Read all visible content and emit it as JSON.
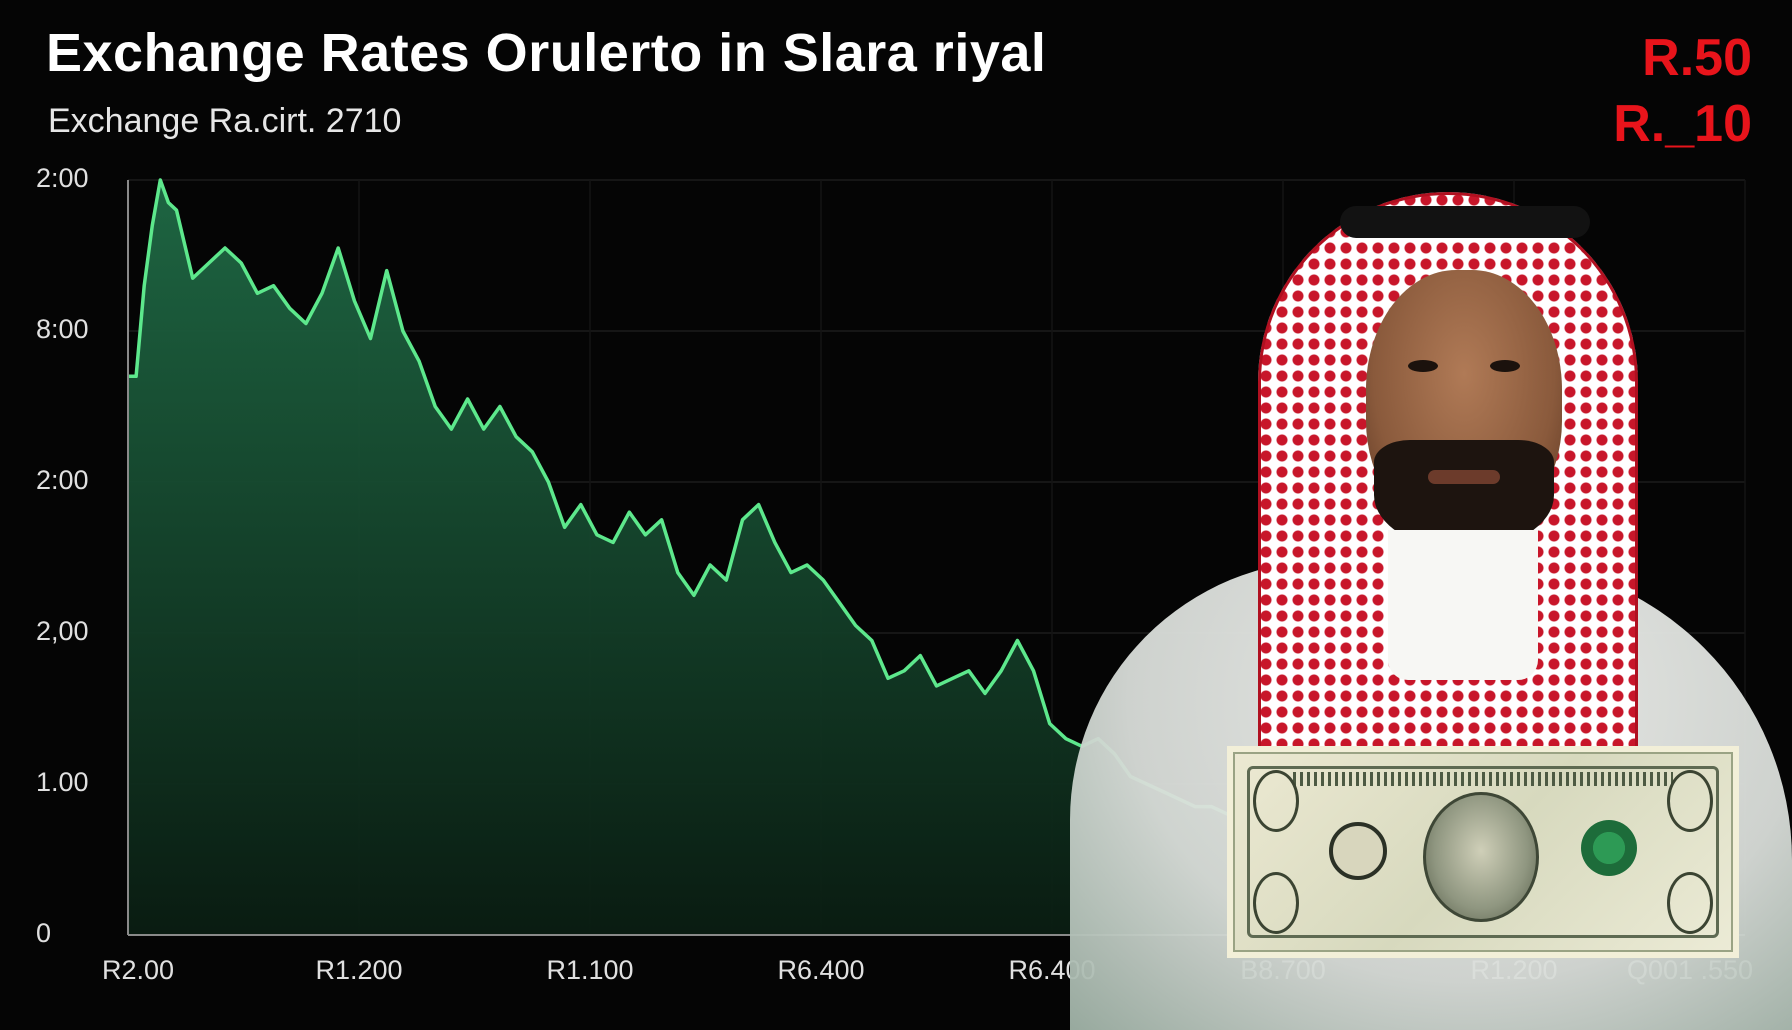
{
  "header": {
    "title": "Exchange Rates Orulerto in Slara riyal",
    "subtitle": "Exchange Ra.cirt. 2710",
    "badge_top": "R.50",
    "badge_bottom": "R._10"
  },
  "colors": {
    "background": "#050505",
    "line": "#5de88c",
    "area_top": "#1f6a45",
    "area_bottom": "#0a1d12",
    "badge": "#e8141b"
  },
  "photo": {
    "subject_icon": "man-in-red-white-ghutra-image",
    "banknote_icon": "us-one-dollar-banknote-image"
  },
  "chart_data": {
    "type": "area",
    "title": "Exchange Rates Orulerto in Slara riyal",
    "subtitle": "Exchange Ra.cirt. 2710",
    "y_tick_labels": [
      "0",
      "1.00",
      "2,00",
      "2:00",
      "8:00",
      "2:00"
    ],
    "x_tick_labels": [
      "R2.00",
      "R1.200",
      "R1.100",
      "R6.400",
      "R6.400",
      "B8.700",
      "R1.200",
      "Q001 .550"
    ],
    "ylim": [
      0,
      5
    ],
    "xlim": [
      0,
      100
    ],
    "grid": true,
    "series": [
      {
        "x": [
          0,
          0.5,
          1,
          1.5,
          2,
          2.5,
          3,
          4,
          5,
          6,
          7,
          8,
          9,
          10,
          11,
          12,
          13,
          14,
          15,
          16,
          17,
          18,
          19,
          20,
          21,
          22,
          23,
          24,
          25,
          26,
          27,
          28,
          29,
          30,
          31,
          32,
          33,
          34,
          35,
          36,
          37,
          38,
          39,
          40,
          41,
          42,
          43,
          44,
          45,
          46,
          47,
          48,
          49,
          50,
          51,
          52,
          53,
          54,
          55,
          56,
          57,
          58,
          59,
          60,
          61,
          62,
          63,
          64,
          65,
          66,
          67,
          68
        ],
        "values": [
          3.7,
          3.7,
          4.3,
          4.7,
          5.0,
          4.85,
          4.8,
          4.35,
          4.45,
          4.55,
          4.45,
          4.25,
          4.3,
          4.15,
          4.05,
          4.25,
          4.55,
          4.2,
          3.95,
          4.4,
          4.0,
          3.8,
          3.5,
          3.35,
          3.55,
          3.35,
          3.5,
          3.3,
          3.2,
          3.0,
          2.7,
          2.85,
          2.65,
          2.6,
          2.8,
          2.65,
          2.75,
          2.4,
          2.25,
          2.45,
          2.35,
          2.75,
          2.85,
          2.6,
          2.4,
          2.45,
          2.35,
          2.2,
          2.05,
          1.95,
          1.7,
          1.75,
          1.85,
          1.65,
          1.7,
          1.75,
          1.6,
          1.75,
          1.95,
          1.75,
          1.4,
          1.3,
          1.25,
          1.3,
          1.2,
          1.05,
          1.0,
          0.95,
          0.9,
          0.85,
          0.85,
          0.8
        ]
      }
    ]
  }
}
